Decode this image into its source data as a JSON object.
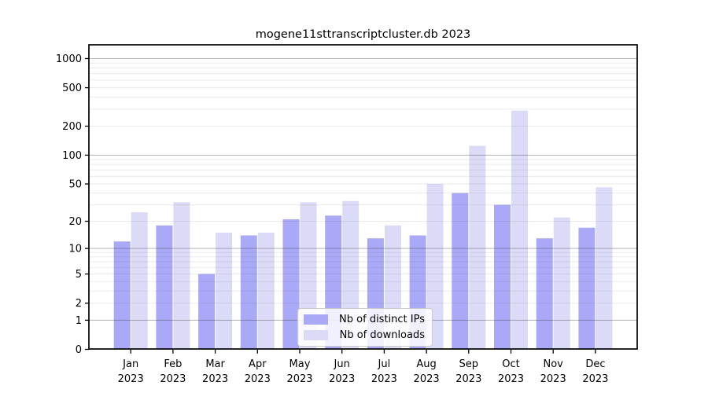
{
  "chart_data": {
    "type": "bar",
    "title": "mogene11sttranscriptcluster.db 2023",
    "categories": [
      "Jan 2023",
      "Feb 2023",
      "Mar 2023",
      "Apr 2023",
      "May 2023",
      "Jun 2023",
      "Jul 2023",
      "Aug 2023",
      "Sep 2023",
      "Oct 2023",
      "Nov 2023",
      "Dec 2023"
    ],
    "series": [
      {
        "name": "Nb of distinct IPs",
        "color": "#a9a9f7",
        "values": [
          12,
          18,
          5,
          14,
          21,
          23,
          13,
          14,
          40,
          30,
          13,
          17
        ]
      },
      {
        "name": "Nb of downloads",
        "color": "#dbdbf8",
        "values": [
          25,
          32,
          15,
          15,
          32,
          33,
          18,
          50,
          125,
          290,
          22,
          46
        ]
      }
    ],
    "xlabel": "",
    "ylabel": "",
    "yscale": "log1p",
    "y_tick_values": [
      0,
      1,
      2,
      5,
      10,
      20,
      50,
      100,
      200,
      500,
      1000
    ],
    "y_minor_grid_values": [
      2,
      3,
      4,
      5,
      6,
      7,
      8,
      9,
      20,
      30,
      40,
      50,
      60,
      70,
      80,
      90,
      200,
      300,
      400,
      500,
      600,
      700,
      800,
      900
    ],
    "y_major_grid_values": [
      1,
      10,
      100,
      1000
    ],
    "ylim": [
      0,
      1400
    ],
    "grid": true,
    "legend_position": "lower center",
    "colors": {
      "distinct_ips_bar": "#a9a9f7",
      "downloads_bar": "#dbdbf8",
      "major_grid": "#bdbdbd",
      "minor_grid": "#ebebeb",
      "spine": "#000000",
      "text": "#000000",
      "background": "#ffffff"
    }
  }
}
